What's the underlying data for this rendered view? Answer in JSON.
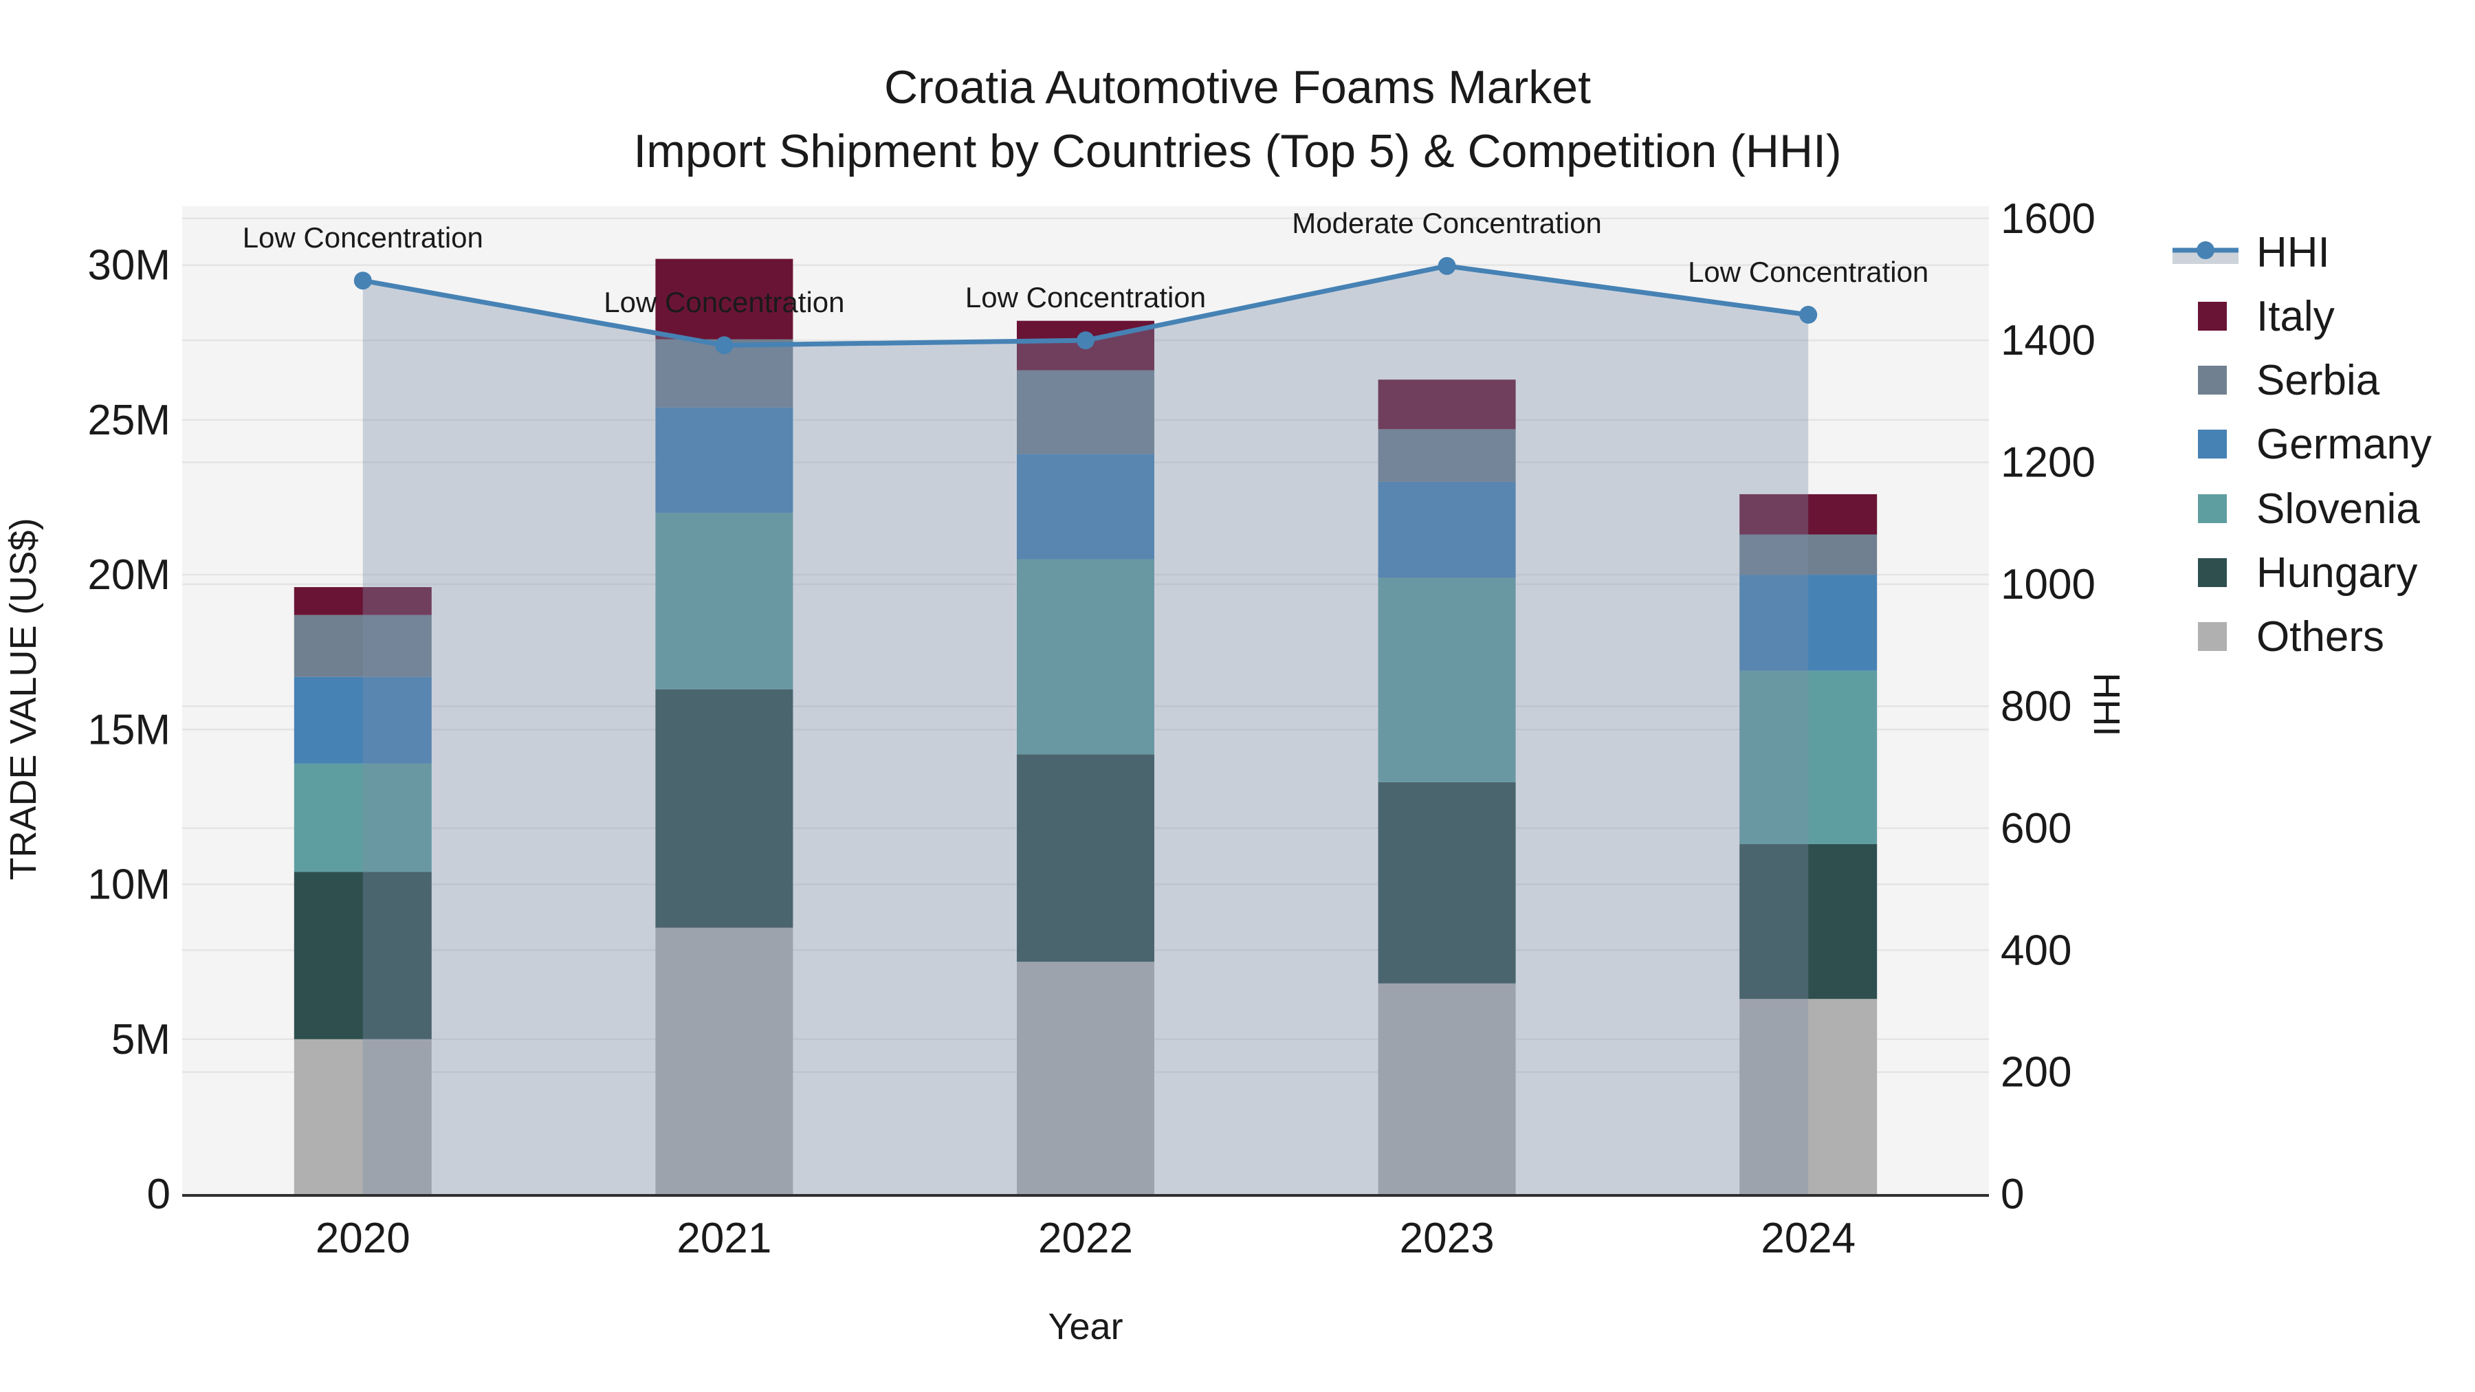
{
  "title_lines": [
    "Croatia Automotive Foams Market",
    "Import Shipment by Countries (Top 5) & Competition (HHI)"
  ],
  "chart_data": {
    "type": "bar",
    "stacked": true,
    "title": "Croatia Automotive Foams Market — Import Shipment by Countries (Top 5) & Competition (HHI)",
    "categories": [
      "2020",
      "2021",
      "2022",
      "2023",
      "2024"
    ],
    "value_unit": "M US$",
    "series": [
      {
        "name": "Others",
        "color": "#B0B0B0",
        "values": [
          5.0,
          8.6,
          7.5,
          6.8,
          6.3
        ]
      },
      {
        "name": "Hungary",
        "color": "#2F4F4F",
        "values": [
          5.4,
          7.7,
          6.7,
          6.5,
          5.0
        ]
      },
      {
        "name": "Slovenia",
        "color": "#5F9EA0",
        "values": [
          3.5,
          5.7,
          6.3,
          6.6,
          5.6
        ]
      },
      {
        "name": "Germany",
        "color": "#4682B4",
        "values": [
          2.8,
          3.4,
          3.4,
          3.1,
          3.1
        ]
      },
      {
        "name": "Serbia",
        "color": "#708090",
        "values": [
          2.0,
          2.2,
          2.7,
          1.7,
          1.3
        ]
      },
      {
        "name": "Italy",
        "color": "#6A1435",
        "values": [
          0.9,
          2.6,
          1.6,
          1.6,
          1.3
        ]
      }
    ],
    "bar_totals": [
      19.6,
      30.2,
      28.2,
      26.3,
      22.6
    ],
    "line_series": {
      "name": "HHI",
      "axis": "right",
      "color": "#4682B4",
      "area_fill": "rgba(126,142,168,0.36)",
      "legend_key_fill": "#CDD3DA",
      "values": [
        1498,
        1392,
        1400,
        1522,
        1442
      ]
    },
    "annotations": [
      {
        "category": "2020",
        "text": "Low Concentration"
      },
      {
        "category": "2021",
        "text": "Low Concentration"
      },
      {
        "category": "2022",
        "text": "Low Concentration"
      },
      {
        "category": "2023",
        "text": "Moderate Concentration"
      },
      {
        "category": "2024",
        "text": "Low Concentration"
      }
    ],
    "xlabel": "Year",
    "ylabel_left": "TRADE VALUE (US$)",
    "ylabel_right": "HHI",
    "yticks_left_labels": [
      "0",
      "5M",
      "10M",
      "15M",
      "20M",
      "25M",
      "30M"
    ],
    "yticks_left_values": [
      0,
      5,
      10,
      15,
      20,
      25,
      30
    ],
    "ylim_left": [
      0,
      31.9
    ],
    "yticks_right_labels": [
      "0",
      "200",
      "400",
      "600",
      "800",
      "1000",
      "1200",
      "1400",
      "1600"
    ],
    "yticks_right_values": [
      0,
      200,
      400,
      600,
      800,
      1000,
      1200,
      1400,
      1600
    ],
    "ylim_right": [
      0,
      1620
    ],
    "grid": true,
    "legend_position": "right",
    "legend_order": [
      "HHI",
      "Italy",
      "Serbia",
      "Germany",
      "Slovenia",
      "Hungary",
      "Others"
    ],
    "colors": {
      "plot_background": "#F4F4F4",
      "gridline": "#E4E4E4",
      "axis_line": "#2F2F2F",
      "text": "#1a1a1a"
    }
  }
}
